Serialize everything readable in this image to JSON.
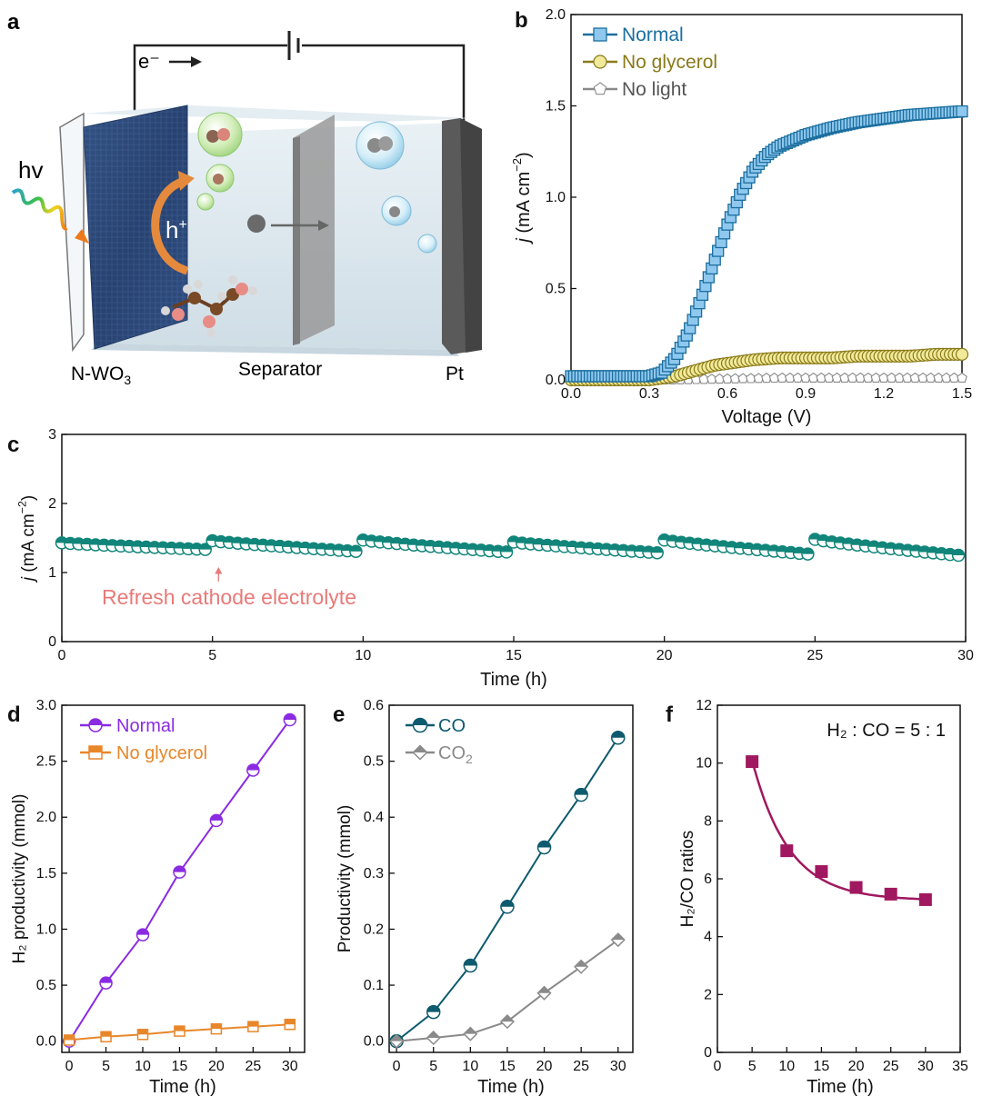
{
  "panel_letters": [
    "a",
    "b",
    "c",
    "d",
    "e",
    "f"
  ],
  "schematic": {
    "electron_label": "e⁻",
    "light_label": "hv",
    "hole_label": "h",
    "hole_sup": "+",
    "anode_label": "N-WO",
    "anode_sub": "3",
    "separator_label": "Separator",
    "cathode_label": "Pt",
    "colors": {
      "photoanode": "#2f4a7a",
      "electrolyte": "#dfe9ef",
      "separator": "#8f8f8f",
      "cathode": "#585858",
      "arrow": "#e58a3c"
    }
  },
  "chart_data": [
    {
      "id": "b",
      "type": "line",
      "xlabel": "Voltage (V)",
      "ylabel_italic": "j",
      "ylabel_rest": " (mA cm",
      "ylabel_sup": "−2",
      "ylabel_close": ")",
      "xlim": [
        0,
        1.5
      ],
      "ylim": [
        0,
        2.0
      ],
      "xticks": [
        "0.0",
        "0.3",
        "0.6",
        "0.9",
        "1.2",
        "1.5"
      ],
      "yticks": [
        "0.0",
        "0.5",
        "1.0",
        "1.5",
        "2.0"
      ],
      "legend_position": "top-left",
      "series": [
        {
          "name": "Normal",
          "color": "#1b6e9e",
          "fill": "#8fc8ef",
          "marker": "square",
          "x": [
            0,
            0.1,
            0.2,
            0.3,
            0.35,
            0.4,
            0.45,
            0.5,
            0.55,
            0.6,
            0.65,
            0.7,
            0.75,
            0.8,
            0.85,
            0.9,
            0.95,
            1.0,
            1.1,
            1.2,
            1.3,
            1.4,
            1.5
          ],
          "y": [
            0.02,
            0.02,
            0.02,
            0.02,
            0.04,
            0.12,
            0.26,
            0.45,
            0.65,
            0.85,
            1.02,
            1.15,
            1.23,
            1.28,
            1.31,
            1.34,
            1.36,
            1.38,
            1.41,
            1.43,
            1.45,
            1.46,
            1.47
          ]
        },
        {
          "name": "No glycerol",
          "color": "#8a7a1a",
          "fill": "#f1ea9a",
          "marker": "circle",
          "x": [
            0,
            0.1,
            0.2,
            0.3,
            0.35,
            0.4,
            0.45,
            0.5,
            0.55,
            0.6,
            0.65,
            0.7,
            0.8,
            0.9,
            1.0,
            1.1,
            1.2,
            1.3,
            1.4,
            1.5
          ],
          "y": [
            0.0,
            0.0,
            0.0,
            0.0,
            0.01,
            0.02,
            0.04,
            0.06,
            0.08,
            0.09,
            0.1,
            0.11,
            0.12,
            0.12,
            0.12,
            0.13,
            0.13,
            0.13,
            0.14,
            0.14
          ]
        },
        {
          "name": "No light",
          "color": "#8a8a8a",
          "fill": "#ffffff",
          "marker": "pentagon",
          "x": [
            0,
            0.2,
            0.4,
            0.6,
            0.8,
            1.0,
            1.2,
            1.4,
            1.5
          ],
          "y": [
            0,
            0,
            0,
            0.005,
            0.01,
            0.01,
            0.01,
            0.01,
            0.01
          ]
        }
      ]
    },
    {
      "id": "c",
      "type": "line",
      "xlabel": "Time (h)",
      "ylabel_italic": "j",
      "ylabel_rest": " (mA cm",
      "ylabel_sup": "−2",
      "ylabel_close": ")",
      "xlim": [
        0,
        30
      ],
      "ylim": [
        0,
        3
      ],
      "xticks": [
        "0",
        "5",
        "10",
        "15",
        "20",
        "25",
        "30"
      ],
      "yticks": [
        "0",
        "1",
        "2",
        "3"
      ],
      "annotation": "Refresh cathode electrolyte",
      "annotation_color": "#e87a78",
      "series": [
        {
          "name": "j",
          "color": "#11857a",
          "segments": [
            {
              "start": 0,
              "end": 5,
              "j0": 1.43,
              "j1": 1.33
            },
            {
              "start": 5,
              "end": 10,
              "j0": 1.46,
              "j1": 1.3
            },
            {
              "start": 10,
              "end": 15,
              "j0": 1.47,
              "j1": 1.29
            },
            {
              "start": 15,
              "end": 20,
              "j0": 1.44,
              "j1": 1.28
            },
            {
              "start": 20,
              "end": 25,
              "j0": 1.47,
              "j1": 1.26
            },
            {
              "start": 25,
              "end": 30,
              "j0": 1.48,
              "j1": 1.24
            }
          ]
        }
      ]
    },
    {
      "id": "d",
      "type": "line",
      "xlabel": "Time (h)",
      "ylabel": "H₂ productivity (mmol)",
      "xlim": [
        -1,
        32
      ],
      "ylim": [
        -0.1,
        3.0
      ],
      "xticks": [
        "0",
        "5",
        "10",
        "15",
        "20",
        "25",
        "30"
      ],
      "yticks": [
        "0.0",
        "0.5",
        "1.0",
        "1.5",
        "2.0",
        "2.5",
        "3.0"
      ],
      "x": [
        0,
        5,
        10,
        15,
        20,
        25,
        30
      ],
      "series": [
        {
          "name": "Normal",
          "color": "#8a2be2",
          "values": [
            0,
            0.52,
            0.95,
            1.51,
            1.97,
            2.42,
            2.87
          ],
          "text_color": "#8a2be2"
        },
        {
          "name": "No glycerol",
          "color": "#e8872a",
          "values": [
            0.01,
            0.04,
            0.06,
            0.09,
            0.11,
            0.13,
            0.15
          ],
          "text_color": "#e8872a"
        }
      ]
    },
    {
      "id": "e",
      "type": "line",
      "xlabel": "Time (h)",
      "ylabel": "Productivity (mmol)",
      "xlim": [
        -1,
        32
      ],
      "ylim": [
        -0.02,
        0.6
      ],
      "xticks": [
        "0",
        "5",
        "10",
        "15",
        "20",
        "25",
        "30"
      ],
      "yticks": [
        "0.0",
        "0.1",
        "0.2",
        "0.3",
        "0.4",
        "0.5",
        "0.6"
      ],
      "x": [
        0,
        5,
        10,
        15,
        20,
        25,
        30
      ],
      "series": [
        {
          "name": "CO",
          "color": "#0e5a6e",
          "values": [
            0,
            0.052,
            0.135,
            0.24,
            0.346,
            0.44,
            0.542
          ],
          "text_color": "#0e5a6e"
        },
        {
          "name": "CO",
          "sub": "2",
          "color": "#8a8a8a",
          "values": [
            0,
            0.006,
            0.013,
            0.035,
            0.086,
            0.133,
            0.181
          ],
          "text_color": "#8a8a8a"
        }
      ]
    },
    {
      "id": "f",
      "type": "scatter",
      "xlabel": "Time (h)",
      "ylabel": "H₂/CO ratios",
      "xlim": [
        0,
        35
      ],
      "ylim": [
        0,
        12
      ],
      "xticks": [
        "0",
        "5",
        "10",
        "15",
        "20",
        "25",
        "30",
        "35"
      ],
      "yticks": [
        "0",
        "2",
        "4",
        "6",
        "8",
        "10",
        "12"
      ],
      "annotation": "H₂ : CO = 5 : 1",
      "x": [
        5,
        10,
        15,
        20,
        25,
        30
      ],
      "series": [
        {
          "name": "H2/CO",
          "color": "#a0185f",
          "values": [
            10.05,
            6.97,
            6.25,
            5.7,
            5.47,
            5.28
          ],
          "fit": {
            "a": 4.85,
            "b": 0.188,
            "c": 5.25
          }
        }
      ]
    }
  ]
}
